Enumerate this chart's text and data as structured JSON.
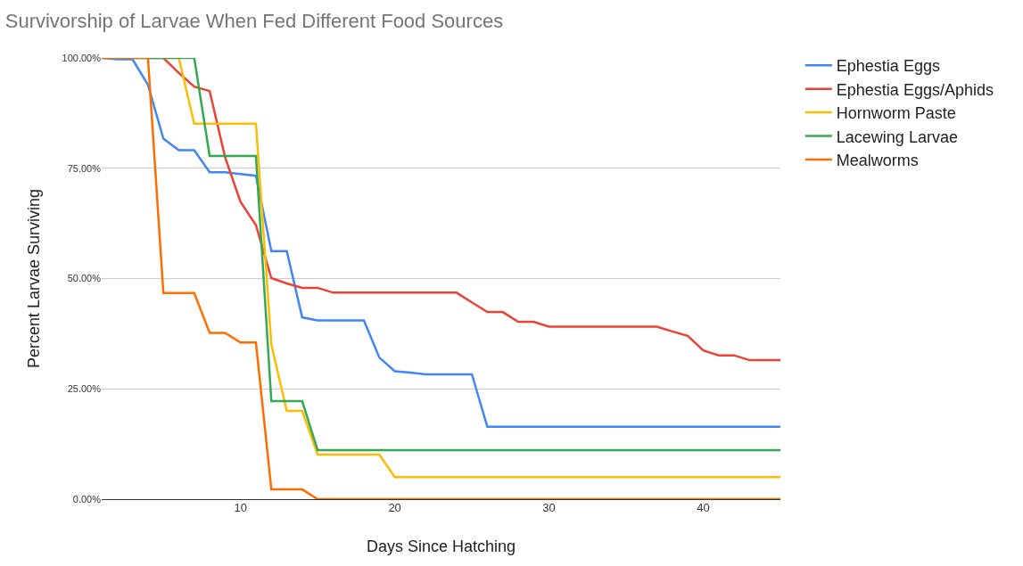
{
  "chart_data": {
    "type": "line",
    "title": "Survivorship of Larvae When Fed Different Food Sources",
    "xlabel": "Days Since Hatching",
    "ylabel": "Percent Larvae Surviving",
    "x": [
      1,
      2,
      3,
      4,
      5,
      6,
      7,
      8,
      9,
      10,
      11,
      12,
      13,
      14,
      15,
      16,
      17,
      18,
      19,
      20,
      21,
      22,
      23,
      24,
      25,
      26,
      27,
      28,
      29,
      30,
      31,
      32,
      33,
      34,
      35,
      36,
      37,
      38,
      39,
      40,
      41,
      42,
      43,
      44,
      45
    ],
    "series": [
      {
        "name": "Ephestia Eggs",
        "color": "#4285f4",
        "values": [
          100,
          99.7,
          99.7,
          93.9,
          81.7,
          79.1,
          79.1,
          74.1,
          74.1,
          73.7,
          73.3,
          56.2,
          56.2,
          41.2,
          40.5,
          40.5,
          40.5,
          40.5,
          32.1,
          29.0,
          28.7,
          28.3,
          28.3,
          28.3,
          28.3,
          16.4,
          16.4,
          16.4,
          16.4,
          16.4,
          16.4,
          16.4,
          16.4,
          16.4,
          16.4,
          16.4,
          16.4,
          16.4,
          16.4,
          16.4,
          16.4,
          16.4,
          16.4,
          16.4,
          16.4
        ]
      },
      {
        "name": "Ephestia Eggs/Aphids",
        "color": "#ea4335",
        "values": [
          null,
          null,
          null,
          100,
          100,
          96.6,
          93.5,
          92.5,
          77.5,
          67.4,
          62.1,
          50.1,
          48.9,
          47.9,
          47.9,
          46.8,
          46.8,
          46.8,
          46.8,
          46.8,
          46.8,
          46.8,
          46.8,
          46.8,
          44.6,
          42.4,
          42.4,
          40.2,
          40.2,
          39.1,
          39.1,
          39.1,
          39.1,
          39.1,
          39.1,
          39.1,
          39.1,
          38.0,
          37.0,
          33.7,
          32.6,
          32.6,
          31.5,
          31.5,
          31.5
        ]
      },
      {
        "name": "Hornworm Paste",
        "color": "#fbbc04",
        "values": [
          null,
          null,
          null,
          null,
          100,
          100,
          85.1,
          85.1,
          85.1,
          85.1,
          85.1,
          35.0,
          20.0,
          20.0,
          10.1,
          10.1,
          10.1,
          10.1,
          10.1,
          5.0,
          5.0,
          5.0,
          5.0,
          5.0,
          5.0,
          5.0,
          5.0,
          5.0,
          5.0,
          5.0,
          5.0,
          5.0,
          5.0,
          5.0,
          5.0,
          5.0,
          5.0,
          5.0,
          5.0,
          5.0,
          5.0,
          5.0,
          5.0,
          5.0,
          5.0
        ]
      },
      {
        "name": "Lacewing Larvae",
        "color": "#34a853",
        "values": [
          null,
          null,
          100,
          100,
          100,
          100,
          100,
          77.8,
          77.8,
          77.8,
          77.8,
          22.2,
          22.2,
          22.2,
          11.1,
          11.1,
          11.1,
          11.1,
          11.1,
          11.1,
          11.1,
          11.1,
          11.1,
          11.1,
          11.1,
          11.1,
          11.1,
          11.1,
          11.1,
          11.1,
          11.1,
          11.1,
          11.1,
          11.1,
          11.1,
          11.1,
          11.1,
          11.1,
          11.1,
          11.1,
          11.1,
          11.1,
          11.1,
          11.1,
          11.1
        ]
      },
      {
        "name": "Mealworms",
        "color": "#ff6d01",
        "values": [
          100,
          100,
          100,
          100,
          46.7,
          46.7,
          46.7,
          37.7,
          37.7,
          35.5,
          35.5,
          2.2,
          2.2,
          2.2,
          0,
          0,
          0,
          0,
          0,
          0,
          0,
          0,
          0,
          0,
          0,
          0,
          0,
          0,
          0,
          0,
          0,
          0,
          0,
          0,
          0,
          0,
          0,
          0,
          0,
          0,
          0,
          0,
          0,
          0,
          0
        ]
      }
    ],
    "xlim": [
      1,
      45
    ],
    "xticks": [
      10,
      20,
      30,
      40
    ],
    "ylim": [
      0,
      100
    ],
    "yticks": [
      {
        "value": 0,
        "label": "0.00%"
      },
      {
        "value": 25,
        "label": "25.00%"
      },
      {
        "value": 50,
        "label": "50.00%"
      },
      {
        "value": 75,
        "label": "75.00%"
      },
      {
        "value": 100,
        "label": "100.00%"
      }
    ],
    "grid": "y",
    "legend": "top right",
    "marker": "none",
    "line_style": "solid"
  }
}
